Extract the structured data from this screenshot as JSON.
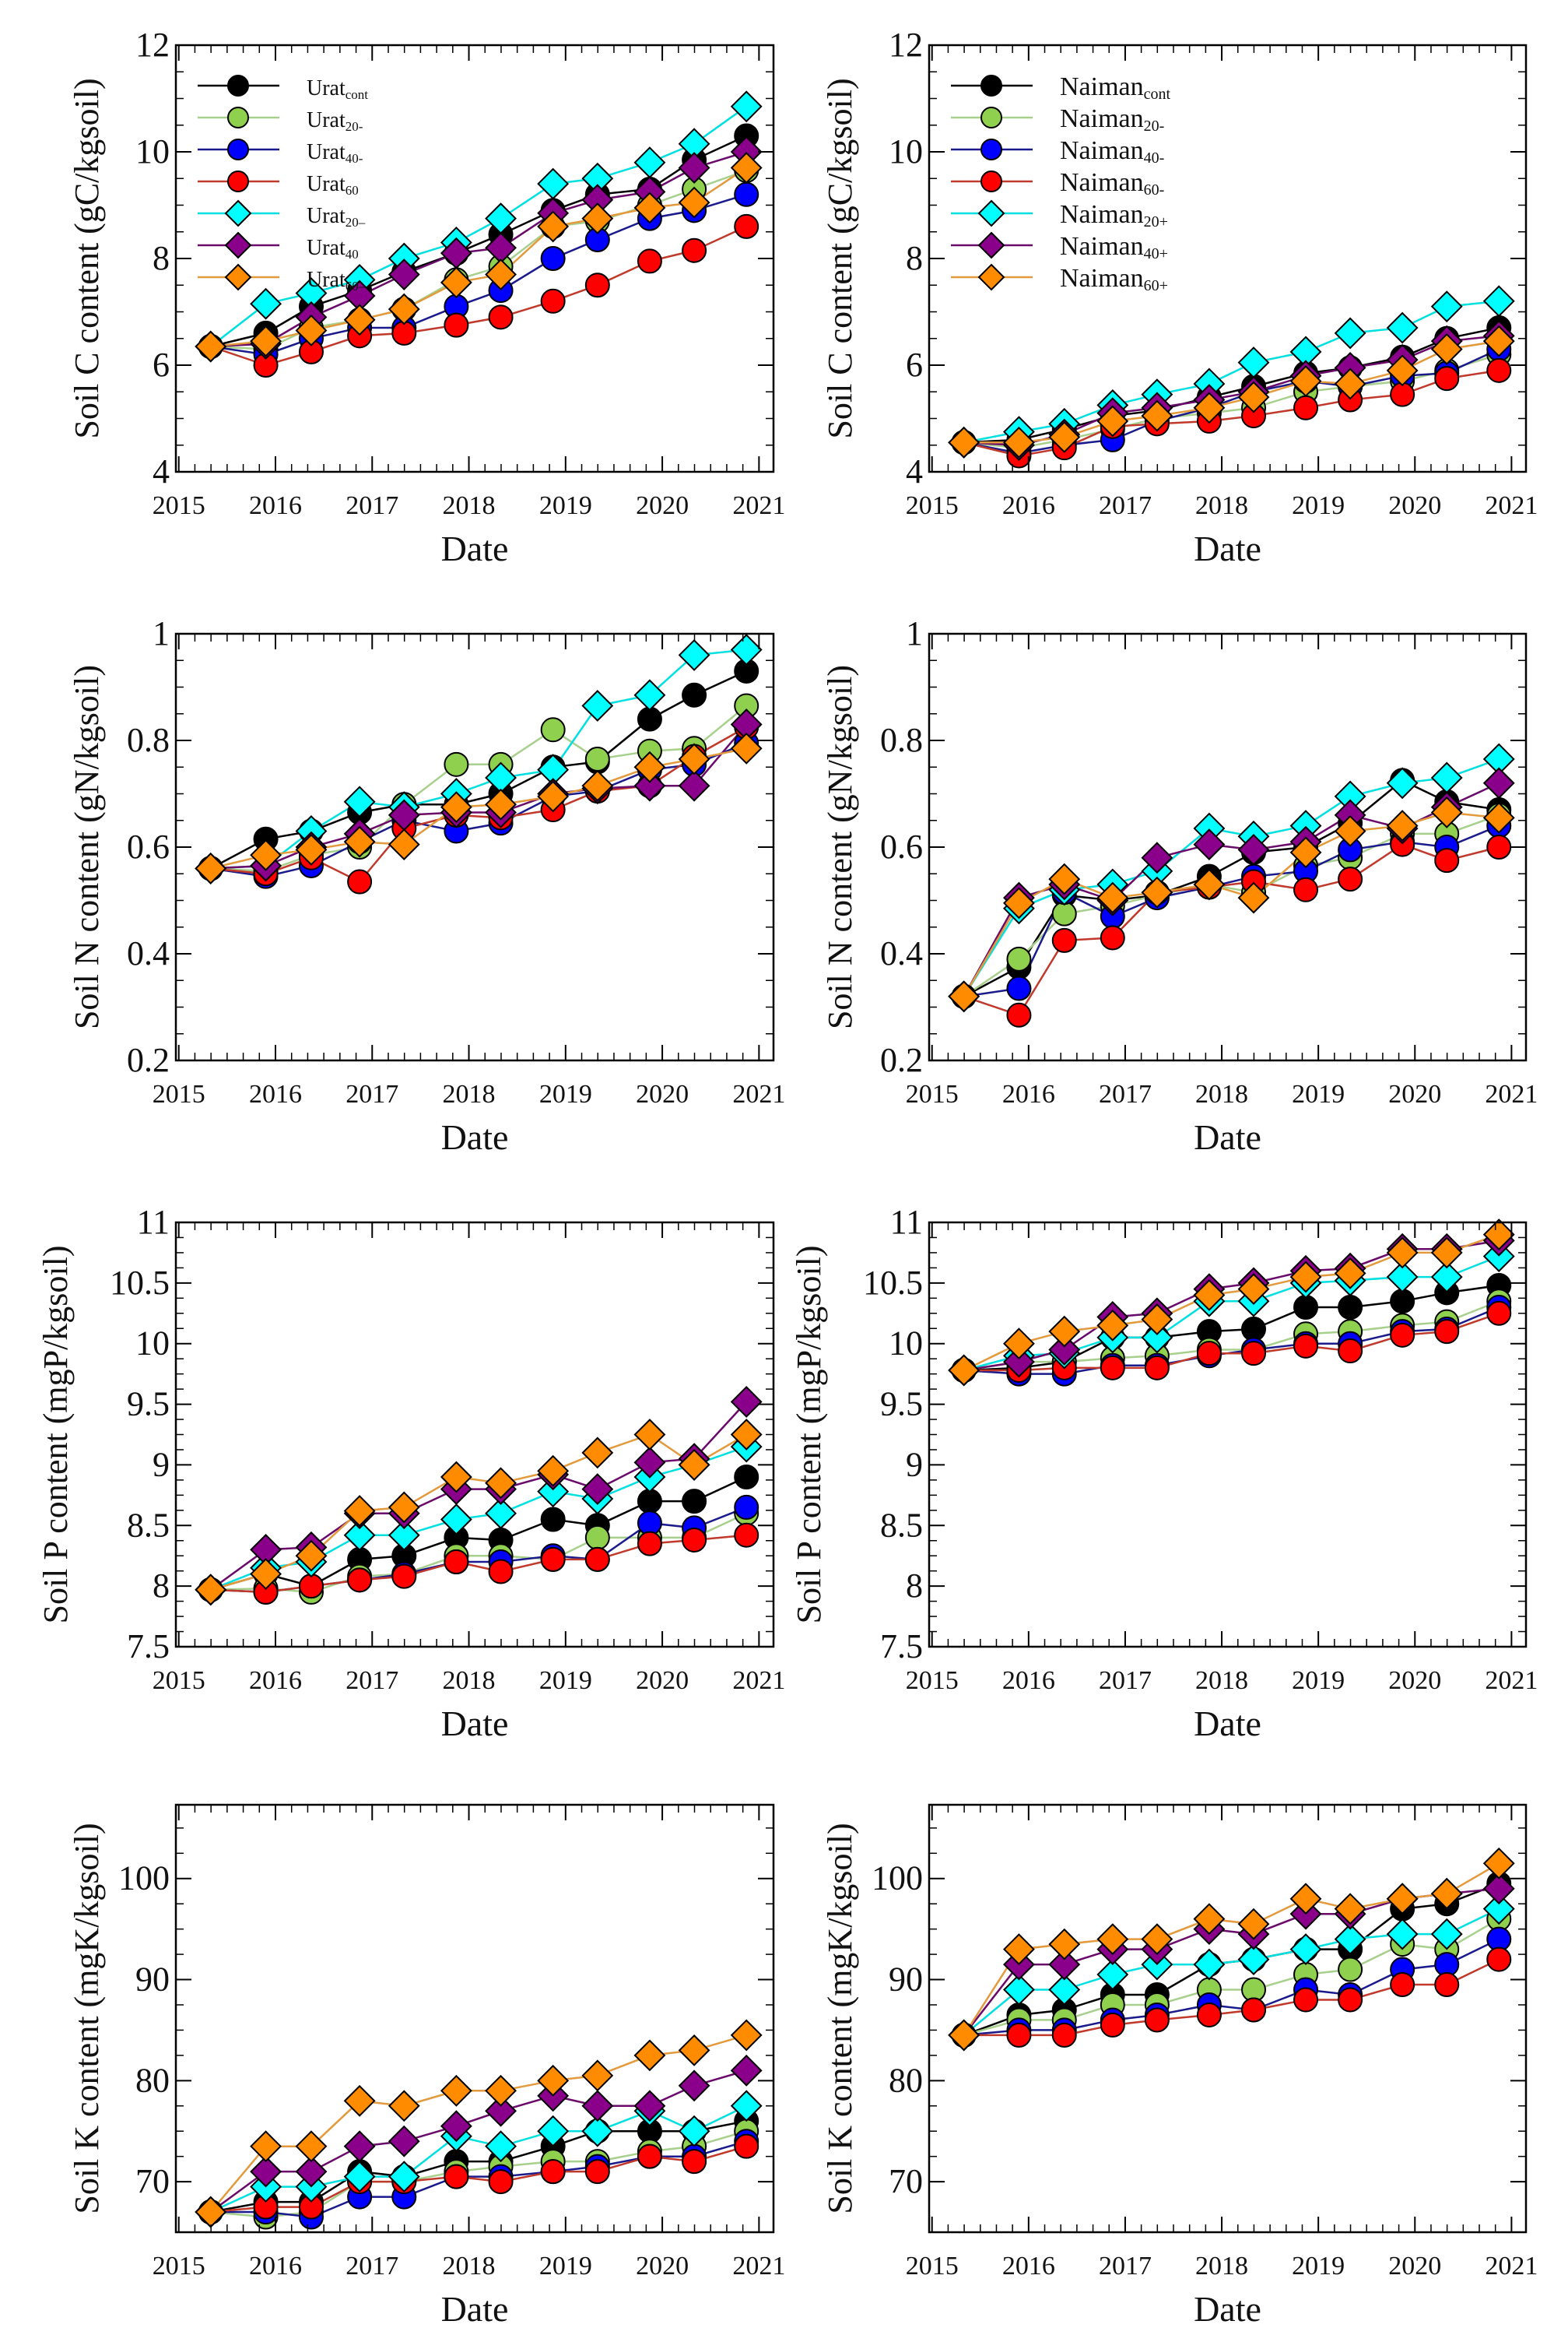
{
  "chart_data": {
    "type": "line",
    "x": [
      2015.33,
      2015.9,
      2016.37,
      2016.87,
      2017.33,
      2017.87,
      2018.33,
      2018.87,
      2019.33,
      2019.87,
      2020.33,
      2020.87
    ],
    "xlabel": "Date",
    "xticks": [
      2015,
      2016,
      2017,
      2018,
      2019,
      2020,
      2021
    ],
    "xlim": [
      2014.97,
      2021.15
    ],
    "series_styles": [
      {
        "marker": "circle",
        "fill": "#000000",
        "line": "#000000"
      },
      {
        "marker": "circle",
        "fill": "#8fd14f",
        "line": "#a8d08d"
      },
      {
        "marker": "circle",
        "fill": "#0000ff",
        "line": "#1a1a8c"
      },
      {
        "marker": "circle",
        "fill": "#ff0000",
        "line": "#c0392b"
      },
      {
        "marker": "diamond",
        "fill": "#00ffff",
        "line": "#00e0e0"
      },
      {
        "marker": "diamond",
        "fill": "#8b008b",
        "line": "#6a0a6a"
      },
      {
        "marker": "diamond",
        "fill": "#ff8c00",
        "line": "#e39a3c"
      }
    ],
    "legends": {
      "urat": [
        {
          "base": "Urat",
          "sub": "cont"
        },
        {
          "base": "Urat",
          "sub": "20-"
        },
        {
          "base": "Urat",
          "sub": "40-"
        },
        {
          "base": "Urat",
          "sub": "60"
        },
        {
          "base": "Urat",
          "sub": "20–"
        },
        {
          "base": "Urat",
          "sub": "40"
        },
        {
          "base": "Urat",
          "sub": "60–"
        }
      ],
      "naiman": [
        {
          "base": "Naiman",
          "sub": "cont"
        },
        {
          "base": "Naiman",
          "sub": "20-"
        },
        {
          "base": "Naiman",
          "sub": "40-"
        },
        {
          "base": "Naiman",
          "sub": "60-"
        },
        {
          "base": "Naiman",
          "sub": "20+"
        },
        {
          "base": "Naiman",
          "sub": "40+"
        },
        {
          "base": "Naiman",
          "sub": "60+"
        }
      ]
    },
    "panels": [
      {
        "site": "urat",
        "ylabel": "Soil C content (gC/kgsoil)",
        "ylim": [
          4,
          12
        ],
        "yticks": [
          4,
          6,
          8,
          10,
          12
        ],
        "legend": "top-left",
        "series": [
          [
            6.35,
            6.6,
            7.1,
            7.4,
            7.75,
            8.1,
            8.45,
            8.9,
            9.2,
            9.3,
            9.85,
            10.3
          ],
          [
            6.35,
            6.3,
            6.7,
            6.85,
            7.05,
            7.6,
            7.85,
            8.6,
            8.7,
            9.0,
            9.3,
            9.65
          ],
          [
            6.35,
            6.2,
            6.5,
            6.7,
            6.7,
            7.1,
            7.4,
            8.0,
            8.35,
            8.75,
            8.9,
            9.2
          ],
          [
            6.35,
            6.0,
            6.25,
            6.55,
            6.6,
            6.75,
            6.9,
            7.2,
            7.5,
            7.95,
            8.15,
            8.6
          ],
          [
            6.35,
            7.15,
            7.35,
            7.6,
            8.0,
            8.3,
            8.75,
            9.4,
            9.5,
            9.8,
            10.15,
            10.85
          ],
          [
            6.35,
            6.4,
            6.9,
            7.3,
            7.7,
            8.1,
            8.2,
            8.85,
            9.1,
            9.25,
            9.7,
            10.0
          ],
          [
            6.35,
            6.45,
            6.65,
            6.85,
            7.05,
            7.55,
            7.7,
            8.6,
            8.75,
            8.95,
            9.05,
            9.7
          ]
        ]
      },
      {
        "site": "naiman",
        "ylabel": "Soil C content (gC/kgsoil)",
        "ylim": [
          4,
          12
        ],
        "yticks": [
          4,
          6,
          8,
          10,
          12
        ],
        "legend": "top-left",
        "series": [
          [
            4.55,
            4.6,
            4.8,
            5.05,
            5.15,
            5.4,
            5.6,
            5.85,
            5.95,
            6.15,
            6.5,
            6.7
          ],
          [
            4.55,
            4.45,
            4.6,
            4.8,
            5.0,
            5.1,
            5.2,
            5.5,
            5.6,
            5.7,
            5.9,
            6.2
          ],
          [
            4.55,
            4.35,
            4.5,
            4.6,
            4.95,
            5.2,
            5.5,
            5.7,
            5.6,
            5.8,
            5.85,
            6.3
          ],
          [
            4.55,
            4.3,
            4.45,
            4.85,
            4.9,
            4.95,
            5.05,
            5.2,
            5.35,
            5.45,
            5.75,
            5.9
          ],
          [
            4.55,
            4.75,
            4.9,
            5.25,
            5.45,
            5.65,
            6.05,
            6.25,
            6.6,
            6.7,
            7.1,
            7.2
          ],
          [
            4.55,
            4.5,
            4.7,
            5.1,
            5.2,
            5.35,
            5.5,
            5.8,
            5.95,
            6.1,
            6.45,
            6.55
          ],
          [
            4.55,
            4.55,
            4.65,
            4.95,
            5.05,
            5.2,
            5.4,
            5.7,
            5.65,
            5.9,
            6.3,
            6.45
          ]
        ]
      },
      {
        "site": "urat",
        "ylabel": "Soil N content (gN/kgsoil)",
        "ylim": [
          0.2,
          1
        ],
        "yticks": [
          0.2,
          0.4,
          0.6,
          0.8,
          1
        ],
        "legend": "none",
        "series": [
          [
            0.56,
            0.615,
            0.63,
            0.665,
            0.68,
            0.68,
            0.7,
            0.75,
            0.76,
            0.84,
            0.885,
            0.93
          ],
          [
            0.56,
            0.555,
            0.585,
            0.6,
            0.68,
            0.755,
            0.755,
            0.82,
            0.765,
            0.78,
            0.785,
            0.865
          ],
          [
            0.56,
            0.545,
            0.565,
            0.61,
            0.65,
            0.63,
            0.645,
            0.695,
            0.705,
            0.745,
            0.755,
            0.795
          ],
          [
            0.56,
            0.55,
            0.58,
            0.535,
            0.635,
            0.66,
            0.655,
            0.67,
            0.705,
            0.715,
            0.77,
            0.825
          ],
          [
            0.56,
            0.565,
            0.63,
            0.685,
            0.675,
            0.7,
            0.73,
            0.745,
            0.865,
            0.885,
            0.96,
            0.97
          ],
          [
            0.56,
            0.565,
            0.6,
            0.625,
            0.66,
            0.665,
            0.665,
            0.7,
            0.71,
            0.715,
            0.715,
            0.83
          ],
          [
            0.56,
            0.585,
            0.595,
            0.61,
            0.605,
            0.675,
            0.68,
            0.695,
            0.715,
            0.75,
            0.765,
            0.785
          ]
        ]
      },
      {
        "site": "naiman",
        "ylabel": "Soil N content (gN/kgsoil)",
        "ylim": [
          0.2,
          1
        ],
        "yticks": [
          0.2,
          0.4,
          0.6,
          0.8,
          1
        ],
        "legend": "none",
        "series": [
          [
            0.32,
            0.375,
            0.51,
            0.5,
            0.51,
            0.545,
            0.59,
            0.6,
            0.645,
            0.725,
            0.685,
            0.67
          ],
          [
            0.32,
            0.39,
            0.475,
            0.49,
            0.51,
            0.53,
            0.515,
            0.565,
            0.58,
            0.625,
            0.625,
            0.66
          ],
          [
            0.32,
            0.335,
            0.515,
            0.47,
            0.505,
            0.525,
            0.545,
            0.555,
            0.595,
            0.61,
            0.6,
            0.64
          ],
          [
            0.32,
            0.285,
            0.425,
            0.43,
            0.515,
            0.525,
            0.535,
            0.52,
            0.54,
            0.605,
            0.575,
            0.6
          ],
          [
            0.32,
            0.485,
            0.52,
            0.53,
            0.555,
            0.635,
            0.62,
            0.64,
            0.695,
            0.72,
            0.73,
            0.765
          ],
          [
            0.32,
            0.505,
            0.53,
            0.5,
            0.58,
            0.605,
            0.595,
            0.61,
            0.66,
            0.635,
            0.675,
            0.72
          ],
          [
            0.32,
            0.495,
            0.54,
            0.505,
            0.515,
            0.53,
            0.505,
            0.59,
            0.63,
            0.64,
            0.665,
            0.655
          ]
        ]
      },
      {
        "site": "urat",
        "ylabel": "Soil P content (mgP/kgsoil)",
        "ylim": [
          7.5,
          11
        ],
        "yticks": [
          7.5,
          8,
          8.5,
          9,
          9.5,
          10,
          10.5,
          11
        ],
        "legend": "none",
        "series": [
          [
            7.97,
            8.1,
            8.0,
            8.22,
            8.25,
            8.4,
            8.38,
            8.55,
            8.5,
            8.7,
            8.7,
            8.9
          ],
          [
            7.97,
            7.98,
            7.95,
            8.08,
            8.1,
            8.25,
            8.25,
            8.22,
            8.4,
            8.4,
            8.4,
            8.6
          ],
          [
            7.97,
            7.95,
            8.0,
            8.05,
            8.1,
            8.2,
            8.2,
            8.25,
            8.22,
            8.52,
            8.48,
            8.65
          ],
          [
            7.97,
            7.95,
            8.0,
            8.05,
            8.08,
            8.2,
            8.12,
            8.22,
            8.22,
            8.35,
            8.38,
            8.42
          ],
          [
            7.97,
            8.15,
            8.2,
            8.42,
            8.42,
            8.55,
            8.6,
            8.78,
            8.72,
            8.9,
            9.0,
            9.15
          ],
          [
            7.97,
            8.3,
            8.32,
            8.6,
            8.6,
            8.8,
            8.8,
            8.92,
            8.8,
            9.02,
            9.05,
            9.52
          ],
          [
            7.97,
            8.1,
            8.25,
            8.62,
            8.65,
            8.9,
            8.85,
            8.95,
            9.1,
            9.25,
            9.0,
            9.25
          ]
        ]
      },
      {
        "site": "naiman",
        "ylabel": "Soil P content (mgP/kgsoil)",
        "ylim": [
          7.5,
          11
        ],
        "yticks": [
          7.5,
          8,
          8.5,
          9,
          9.5,
          10,
          10.5,
          11
        ],
        "legend": "none",
        "series": [
          [
            9.78,
            9.8,
            9.85,
            10.05,
            10.05,
            10.1,
            10.12,
            10.3,
            10.3,
            10.35,
            10.42,
            10.48
          ],
          [
            9.78,
            9.85,
            9.85,
            9.88,
            9.9,
            9.95,
            9.95,
            10.08,
            10.1,
            10.15,
            10.18,
            10.35
          ],
          [
            9.78,
            9.75,
            9.75,
            9.82,
            9.82,
            9.9,
            9.95,
            10.0,
            10.0,
            10.1,
            10.12,
            10.3
          ],
          [
            9.78,
            9.78,
            9.8,
            9.8,
            9.8,
            9.92,
            9.92,
            9.98,
            9.94,
            10.07,
            10.1,
            10.25
          ],
          [
            9.78,
            9.9,
            9.92,
            10.05,
            10.05,
            10.35,
            10.35,
            10.5,
            10.52,
            10.55,
            10.55,
            10.72
          ],
          [
            9.78,
            9.85,
            9.95,
            10.22,
            10.25,
            10.45,
            10.5,
            10.6,
            10.62,
            10.78,
            10.78,
            10.85
          ],
          [
            9.78,
            10.0,
            10.1,
            10.15,
            10.2,
            10.4,
            10.45,
            10.55,
            10.58,
            10.75,
            10.75,
            10.9
          ]
        ]
      },
      {
        "site": "urat",
        "ylabel": "Soil K content (mgK/kgsoil)",
        "ylim": [
          65,
          107.3
        ],
        "yticks": [
          70,
          80,
          90,
          100
        ],
        "legend": "none",
        "series": [
          [
            67,
            68,
            68,
            71,
            70.5,
            72,
            72,
            73.5,
            75,
            75,
            75,
            76
          ],
          [
            67,
            66.5,
            67,
            70,
            70,
            71,
            71.5,
            72,
            72,
            73,
            73.5,
            75
          ],
          [
            67,
            67,
            66.5,
            68.5,
            68.5,
            70.5,
            70.5,
            71,
            71.5,
            72.5,
            72.5,
            74
          ],
          [
            67,
            67.5,
            67.5,
            70,
            70,
            70.5,
            70,
            71,
            71,
            72.5,
            72,
            73.5
          ],
          [
            67,
            69.5,
            69.5,
            70.5,
            70.5,
            74.5,
            73.5,
            75,
            75,
            77,
            75,
            77.5
          ],
          [
            67,
            71,
            71,
            73.5,
            74,
            75.5,
            77,
            78.5,
            77.5,
            77.5,
            79.5,
            81
          ],
          [
            67,
            73.5,
            73.5,
            78,
            77.5,
            79,
            79,
            80,
            80.5,
            82.5,
            83,
            84.5
          ]
        ]
      },
      {
        "site": "naiman",
        "ylabel": "Soil K content (mgK/kgsoil)",
        "ylim": [
          65,
          107.3
        ],
        "yticks": [
          70,
          80,
          90,
          100
        ],
        "legend": "none",
        "series": [
          [
            84.5,
            86.5,
            87,
            88.5,
            88.5,
            91.5,
            92,
            93,
            93,
            97,
            97.5,
            99.5
          ],
          [
            84.5,
            86,
            86,
            87.5,
            87.5,
            89,
            89,
            90.5,
            91,
            93.5,
            93,
            96
          ],
          [
            84.5,
            85,
            85,
            86,
            86.5,
            87.5,
            87,
            89,
            88.5,
            91,
            91.5,
            94
          ],
          [
            84.5,
            84.5,
            84.5,
            85.5,
            86,
            86.5,
            87,
            88,
            88,
            89.5,
            89.5,
            92
          ],
          [
            84.5,
            89,
            89,
            90.5,
            91.5,
            91.5,
            92,
            93,
            94,
            94.5,
            94.5,
            97
          ],
          [
            84.5,
            91.5,
            91.5,
            93,
            93,
            95,
            94.5,
            96.5,
            96.5,
            98,
            98.5,
            99
          ],
          [
            84.5,
            93,
            93.5,
            94,
            94,
            96,
            95.5,
            98,
            97,
            98,
            98.5,
            101.5
          ]
        ]
      }
    ]
  }
}
